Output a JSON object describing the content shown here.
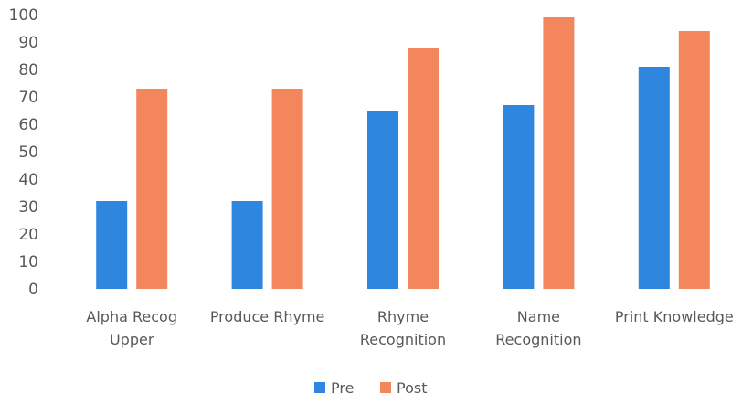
{
  "chart_data": {
    "type": "bar",
    "categories": [
      [
        "Alpha Recog",
        "Upper"
      ],
      [
        "Produce Rhyme"
      ],
      [
        "Rhyme",
        "Recognition"
      ],
      [
        "Name",
        "Recognition"
      ],
      [
        "Print Knowledge"
      ]
    ],
    "series": [
      {
        "name": "Pre",
        "color": "#2E86DE",
        "values": [
          32,
          32,
          65,
          67,
          81
        ]
      },
      {
        "name": "Post",
        "color": "#F4865E",
        "values": [
          73,
          73,
          88,
          99,
          94
        ]
      }
    ],
    "ylim": [
      0,
      100
    ],
    "yticks": [
      "0",
      "10",
      "20",
      "30",
      "40",
      "50",
      "60",
      "70",
      "80",
      "90",
      "100"
    ],
    "grid": false,
    "legend_position": "bottom-center"
  }
}
